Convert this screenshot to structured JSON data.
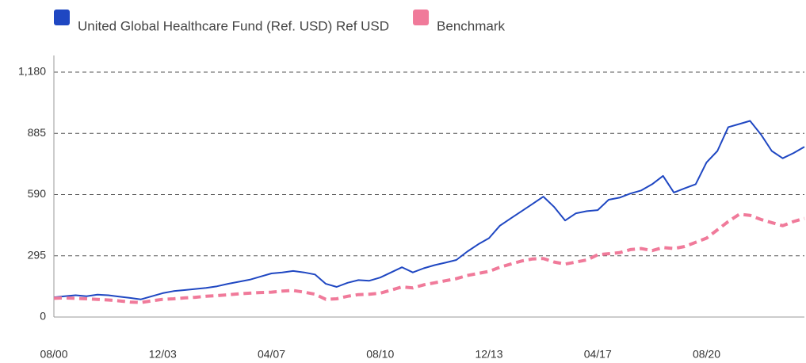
{
  "chart_data": {
    "type": "line",
    "categories": [
      "08/00",
      null,
      null,
      null,
      null,
      null,
      null,
      null,
      null,
      null,
      "12/03",
      null,
      null,
      null,
      null,
      null,
      null,
      null,
      null,
      null,
      "04/07",
      null,
      null,
      null,
      null,
      null,
      null,
      null,
      null,
      null,
      "08/10",
      null,
      null,
      null,
      null,
      null,
      null,
      null,
      null,
      null,
      "12/13",
      null,
      null,
      null,
      null,
      null,
      null,
      null,
      null,
      null,
      "04/17",
      null,
      null,
      null,
      null,
      null,
      null,
      null,
      null,
      null,
      "08/20",
      null,
      null,
      null,
      null,
      null,
      null,
      null,
      null,
      null
    ],
    "series": [
      {
        "name": "United Global Healthcare Fund (Ref. USD)  Ref USD",
        "color": "#1f47c2",
        "dashed": false,
        "values": [
          95,
          100,
          105,
          100,
          108,
          105,
          98,
          92,
          85,
          100,
          115,
          125,
          130,
          135,
          140,
          148,
          160,
          170,
          180,
          195,
          210,
          215,
          222,
          215,
          205,
          160,
          145,
          165,
          178,
          175,
          190,
          215,
          240,
          215,
          235,
          250,
          262,
          275,
          315,
          350,
          380,
          440,
          475,
          510,
          545,
          580,
          530,
          465,
          500,
          510,
          515,
          565,
          575,
          595,
          610,
          640,
          680,
          600,
          620,
          640,
          745,
          800,
          915,
          930,
          945,
          880,
          800,
          765,
          790,
          820
        ]
      },
      {
        "name": "Benchmark",
        "color": "#f07a9a",
        "dashed": true,
        "values": [
          90,
          92,
          90,
          88,
          85,
          82,
          78,
          72,
          70,
          78,
          85,
          88,
          92,
          95,
          100,
          103,
          107,
          112,
          115,
          118,
          120,
          125,
          128,
          120,
          110,
          85,
          88,
          100,
          108,
          110,
          115,
          130,
          145,
          140,
          155,
          165,
          175,
          185,
          200,
          210,
          220,
          240,
          255,
          270,
          280,
          282,
          265,
          255,
          265,
          275,
          300,
          305,
          310,
          325,
          330,
          320,
          335,
          330,
          340,
          360,
          380,
          420,
          460,
          495,
          490,
          470,
          455,
          440,
          460,
          475
        ]
      }
    ],
    "ylim": [
      0,
      1180
    ],
    "yticks": [
      0,
      295,
      590,
      885,
      {
        "value": 1180,
        "label": "1,180"
      }
    ],
    "grid": true,
    "legend": "top-left"
  }
}
